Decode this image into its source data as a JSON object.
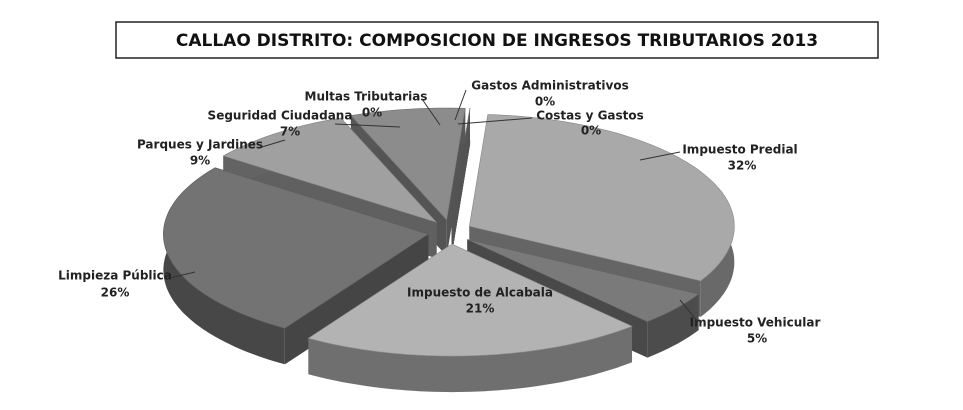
{
  "chart_data": {
    "type": "pie",
    "title": "CALLAO DISTRITO: COMPOSICION DE INGRESOS TRIBUTARIOS 2013",
    "categories": [
      "Gastos Administrativos",
      "Costas y Gastos",
      "Impuesto Predial",
      "Impuesto Vehicular",
      "Impuesto de Alcabala",
      "Limpieza Pública",
      "Parques y Jardines",
      "Seguridad Ciudadana",
      "Multas Tributarias"
    ],
    "values": [
      0,
      0,
      32,
      5,
      21,
      26,
      9,
      7,
      0
    ],
    "value_labels": [
      "0%",
      "0%",
      "32%",
      "5%",
      "21%",
      "26%",
      "9%",
      "7%",
      "0%"
    ],
    "colors": [
      "#9a9a9a",
      "#8a8a8a",
      "#a9a9a9",
      "#7a7a7a",
      "#b3b3b3",
      "#737373",
      "#a0a0a0",
      "#8c8c8c",
      "#9a9a9a"
    ]
  }
}
